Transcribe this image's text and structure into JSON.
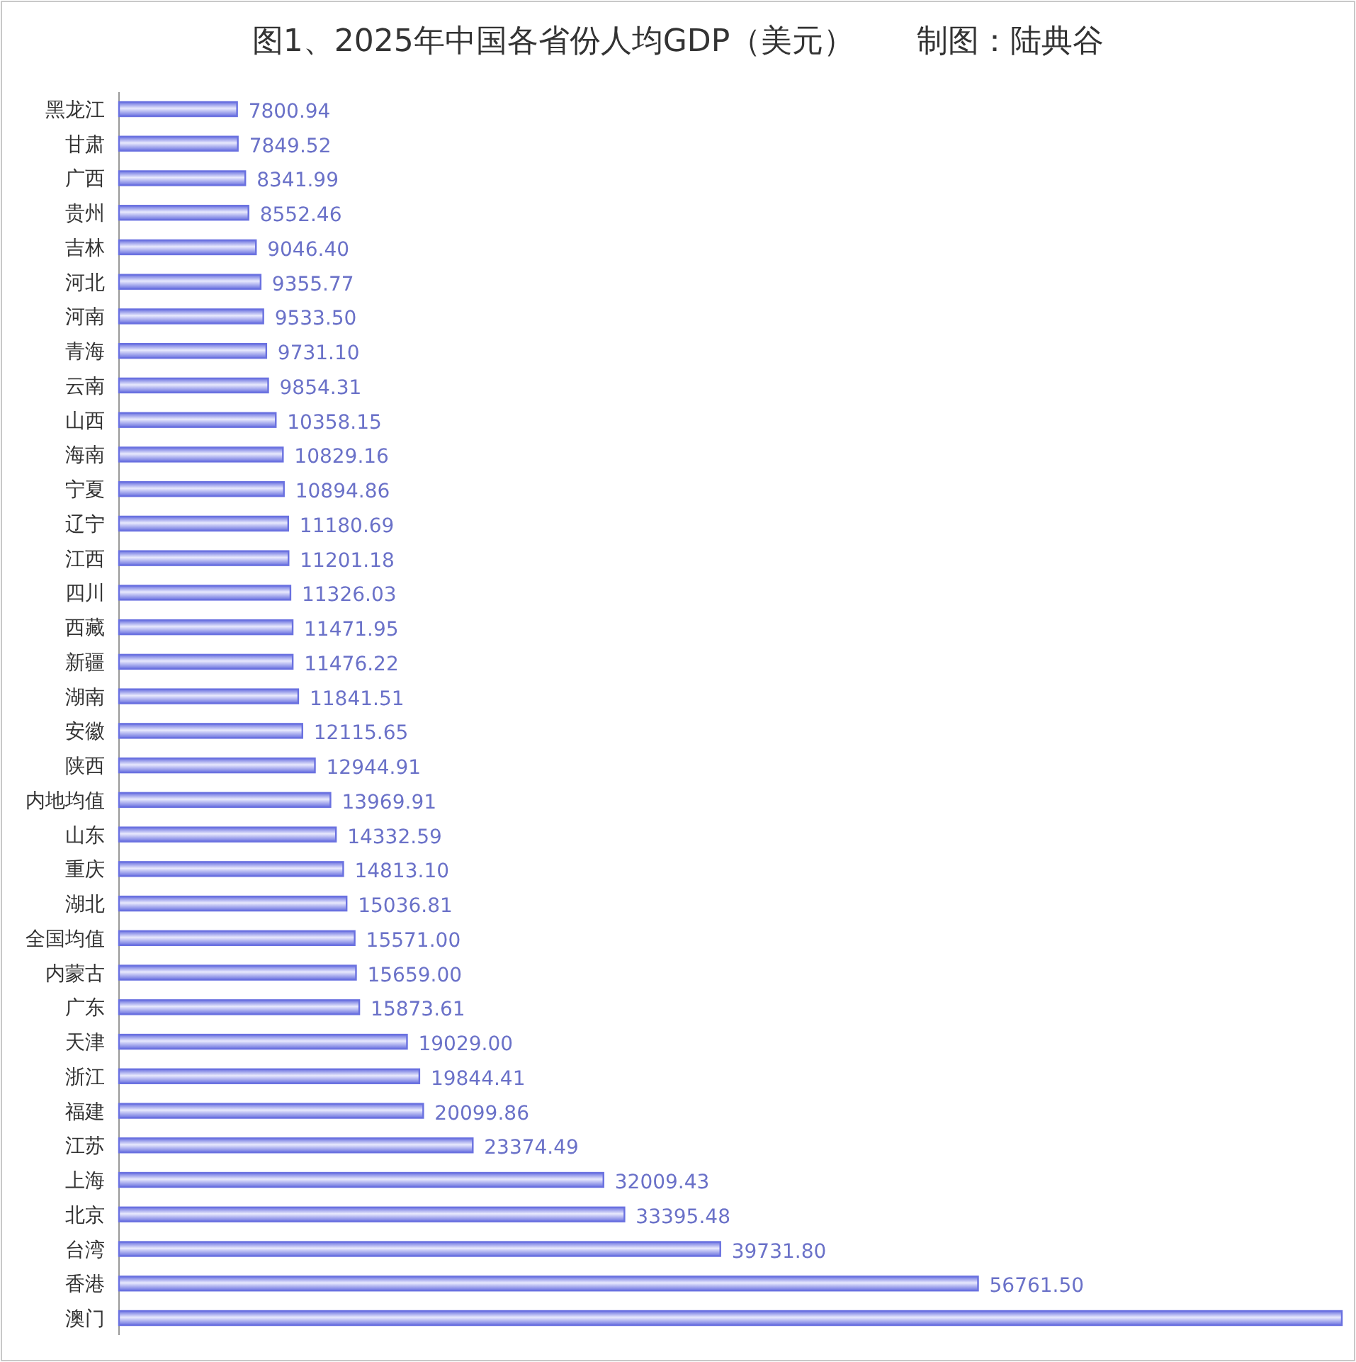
{
  "chart_data": {
    "type": "bar",
    "orientation": "horizontal",
    "title": "图1、2025年中国各省份人均GDP（美元）　　制图：陆典谷",
    "categories": [
      "黑龙江",
      "甘肃",
      "广西",
      "贵州",
      "吉林",
      "河北",
      "河南",
      "青海",
      "云南",
      "山西",
      "海南",
      "宁夏",
      "辽宁",
      "江西",
      "四川",
      "西藏",
      "新疆",
      "湖南",
      "安徽",
      "陕西",
      "内地均值",
      "山东",
      "重庆",
      "湖北",
      "全国均值",
      "内蒙古",
      "广东",
      "天津",
      "浙江",
      "福建",
      "江苏",
      "上海",
      "北京",
      "台湾",
      "香港",
      "澳门"
    ],
    "values": [
      7800.94,
      7849.52,
      8341.99,
      8552.46,
      9046.4,
      9355.77,
      9533.5,
      9731.1,
      9854.31,
      10358.15,
      10829.16,
      10894.86,
      11180.69,
      11201.18,
      11326.03,
      11471.95,
      11476.22,
      11841.51,
      12115.65,
      12944.91,
      13969.91,
      14332.59,
      14813.1,
      15036.81,
      15571.0,
      15659.0,
      15873.61,
      19029.0,
      19844.41,
      20099.86,
      23374.49,
      32009.43,
      33395.48,
      39731.8,
      56761.5,
      80800
    ],
    "value_labels": [
      "7800.94",
      "7849.52",
      "8341.99",
      "8552.46",
      "9046.40",
      "9355.77",
      "9533.50",
      "9731.10",
      "9854.31",
      "10358.15",
      "10829.16",
      "10894.86",
      "11180.69",
      "11201.18",
      "11326.03",
      "11471.95",
      "11476.22",
      "11841.51",
      "12115.65",
      "12944.91",
      "13969.91",
      "14332.59",
      "14813.10",
      "15036.81",
      "15571.00",
      "15659.00",
      "15873.61",
      "19029.00",
      "19844.41",
      "20099.86",
      "23374.49",
      "32009.43",
      "33395.48",
      "39731.80",
      "56761.50",
      null
    ],
    "color": "#6a71e0"
  }
}
